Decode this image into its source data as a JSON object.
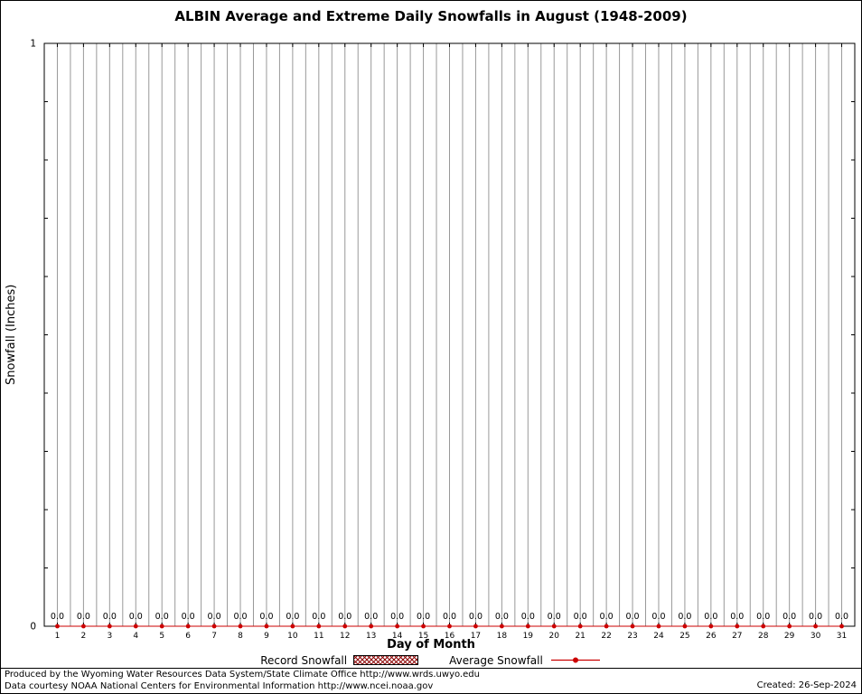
{
  "chart_data": {
    "type": "line",
    "title": "ALBIN Average and Extreme Daily Snowfalls in August (1948-2009)",
    "xlabel": "Day of Month",
    "ylabel": "Snowfall (Inches)",
    "ylim": [
      0,
      1
    ],
    "yticks": {
      "major": [
        0,
        1
      ],
      "major_labels": [
        "0",
        "1"
      ],
      "minor_step": 0.1
    },
    "x": [
      1,
      2,
      3,
      4,
      5,
      6,
      7,
      8,
      9,
      10,
      11,
      12,
      13,
      14,
      15,
      16,
      17,
      18,
      19,
      20,
      21,
      22,
      23,
      24,
      25,
      26,
      27,
      28,
      29,
      30,
      31
    ],
    "series": [
      {
        "name": "Record Snowfall",
        "style": "bar",
        "values": [
          0,
          0,
          0,
          0,
          0,
          0,
          0,
          0,
          0,
          0,
          0,
          0,
          0,
          0,
          0,
          0,
          0,
          0,
          0,
          0,
          0,
          0,
          0,
          0,
          0,
          0,
          0,
          0,
          0,
          0,
          0
        ]
      },
      {
        "name": "Average Snowfall",
        "style": "line-point",
        "values": [
          0,
          0,
          0,
          0,
          0,
          0,
          0,
          0,
          0,
          0,
          0,
          0,
          0,
          0,
          0,
          0,
          0,
          0,
          0,
          0,
          0,
          0,
          0,
          0,
          0,
          0,
          0,
          0,
          0,
          0,
          0
        ]
      }
    ],
    "point_labels": [
      "0.0",
      "0.0",
      "0.0",
      "0.0",
      "0.0",
      "0.0",
      "0.0",
      "0.0",
      "0.0",
      "0.0",
      "0.0",
      "0.0",
      "0.0",
      "0.0",
      "0.0",
      "0.0",
      "0.0",
      "0.0",
      "0.0",
      "0.0",
      "0.0",
      "0.0",
      "0.0",
      "0.0",
      "0.0",
      "0.0",
      "0.0",
      "0.0",
      "0.0",
      "0.0",
      "0.0"
    ],
    "grid": "vertical",
    "legend_position": "bottom-center"
  },
  "legend": {
    "items": [
      {
        "label": "Record Snowfall",
        "swatch": "crosshatch-box"
      },
      {
        "label": "Average Snowfall",
        "swatch": "line-with-point"
      }
    ]
  },
  "footer": {
    "line1": "Produced by the Wyoming Water Resources Data System/State Climate Office http://www.wrds.uwyo.edu",
    "line2": "Data courtesy NOAA National Centers for Environmental Information http://www.ncei.noaa.gov",
    "created": "Created: 26-Sep-2024"
  },
  "colors": {
    "line": "#cc0000",
    "point": "#cc0000",
    "record_hatch": "#8b0000",
    "grid": "#999999",
    "axis": "#000000",
    "text": "#000000"
  }
}
